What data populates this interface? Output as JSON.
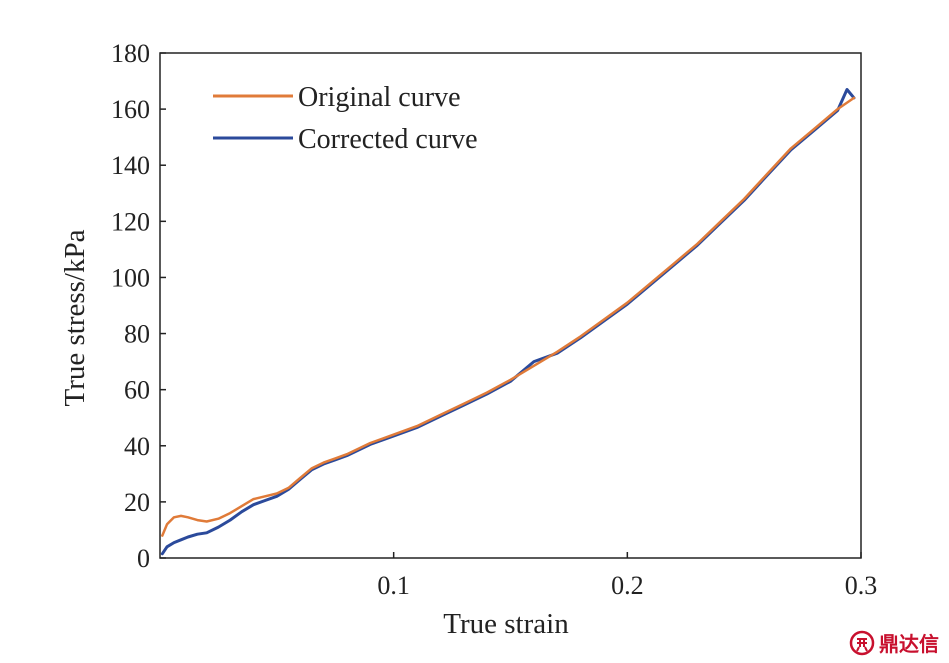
{
  "chart_data": {
    "type": "line",
    "xlabel": "True strain",
    "ylabel": "True stress/kPa",
    "xlim": [
      0,
      0.3
    ],
    "ylim": [
      0,
      180
    ],
    "xticks": [
      0.1,
      0.2,
      0.3
    ],
    "xtick_labels": [
      "0.1",
      "0.2",
      "0.3"
    ],
    "yticks": [
      0,
      20,
      40,
      60,
      80,
      100,
      120,
      140,
      160,
      180
    ],
    "ytick_labels": [
      "0",
      "20",
      "40",
      "60",
      "80",
      "100",
      "120",
      "140",
      "160",
      "180"
    ],
    "grid": false,
    "legend_position": "top-left",
    "series": [
      {
        "name": "Original curve",
        "color": "#e07b39",
        "x": [
          0.001,
          0.003,
          0.006,
          0.009,
          0.012,
          0.016,
          0.02,
          0.025,
          0.03,
          0.035,
          0.04,
          0.045,
          0.05,
          0.055,
          0.06,
          0.065,
          0.07,
          0.075,
          0.08,
          0.085,
          0.09,
          0.1,
          0.11,
          0.12,
          0.13,
          0.14,
          0.15,
          0.16,
          0.17,
          0.18,
          0.19,
          0.2,
          0.21,
          0.22,
          0.23,
          0.24,
          0.25,
          0.26,
          0.27,
          0.28,
          0.29,
          0.297
        ],
        "y": [
          8,
          12,
          14.5,
          15,
          14.5,
          13.5,
          13,
          14,
          16,
          18.5,
          21,
          22,
          23,
          25,
          28.5,
          32,
          34,
          35.5,
          37,
          39,
          41,
          44,
          47,
          51,
          55,
          59,
          63.5,
          68.5,
          73.5,
          79,
          85,
          91,
          98,
          105,
          112,
          120,
          128,
          137,
          146,
          153,
          160,
          164
        ]
      },
      {
        "name": "Corrected curve",
        "color": "#2b4a9b",
        "x": [
          0.001,
          0.003,
          0.006,
          0.009,
          0.012,
          0.016,
          0.02,
          0.025,
          0.03,
          0.035,
          0.04,
          0.045,
          0.05,
          0.055,
          0.06,
          0.065,
          0.07,
          0.075,
          0.08,
          0.085,
          0.09,
          0.1,
          0.11,
          0.12,
          0.13,
          0.14,
          0.15,
          0.16,
          0.17,
          0.18,
          0.19,
          0.2,
          0.21,
          0.22,
          0.23,
          0.24,
          0.25,
          0.26,
          0.27,
          0.28,
          0.29,
          0.294,
          0.297
        ],
        "y": [
          1.5,
          4,
          5.5,
          6.5,
          7.5,
          8.5,
          9,
          11,
          13.5,
          16.5,
          19,
          20.5,
          22,
          24.5,
          28,
          31.5,
          33.5,
          35,
          36.5,
          38.5,
          40.5,
          43.5,
          46.5,
          50.5,
          54.5,
          58.5,
          63,
          70,
          73,
          78.5,
          84.5,
          90.5,
          97.5,
          104.5,
          111.5,
          119.5,
          127.5,
          136.5,
          145.5,
          152.5,
          159.5,
          167,
          164
        ]
      }
    ]
  },
  "watermark": {
    "text": "鼎达信"
  }
}
